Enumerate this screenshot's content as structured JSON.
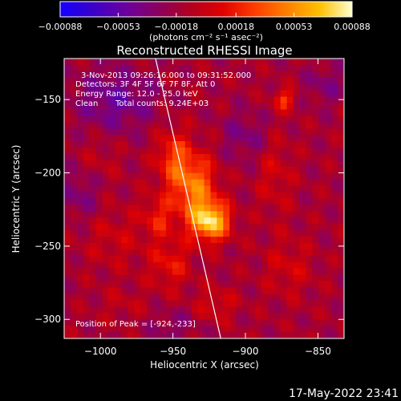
{
  "chart_data": {
    "type": "heatmap",
    "title": "Reconstructed RHESSI Image",
    "xlabel": "Heliocentric X (arcsec)",
    "ylabel": "Heliocentric Y (arcsec)",
    "xlim": [
      -1025,
      -832
    ],
    "ylim": [
      -313,
      -122
    ],
    "xticks": [
      -1000,
      -950,
      -900,
      -850
    ],
    "yticks": [
      -300,
      -250,
      -200,
      -150
    ],
    "xtick_labels": [
      "−1000",
      "−950",
      "−900",
      "−850"
    ],
    "ytick_labels": [
      "−300",
      "−250",
      "−200",
      "−150"
    ],
    "colorbar": {
      "min": -0.00088,
      "max": 0.00088,
      "ticks": [
        -0.00088,
        -0.00053,
        -0.00018,
        0.00018,
        0.00053,
        0.00088
      ],
      "tick_labels": [
        "−0.00088",
        "−0.00053",
        "−0.00018",
        "0.00018",
        "0.00053",
        "0.00088"
      ],
      "unit_label": "(photons cm⁻² s⁻¹ asec⁻²)",
      "colors": [
        "#1400ff",
        "#3a00c8",
        "#6a00a0",
        "#8a0060",
        "#b00020",
        "#e00000",
        "#ff3c00",
        "#ff8000",
        "#ffc000",
        "#ffffd0"
      ]
    },
    "sources": [
      {
        "x": -924,
        "y": -233,
        "value": 0.00088,
        "sx": 9,
        "sy": 9
      },
      {
        "x": -935,
        "y": -210,
        "value": 0.0006,
        "sx": 10,
        "sy": 16
      },
      {
        "x": -950,
        "y": -190,
        "value": 0.0004,
        "sx": 8,
        "sy": 14
      },
      {
        "x": -960,
        "y": -230,
        "value": 0.0003,
        "sx": 8,
        "sy": 10
      },
      {
        "x": -952,
        "y": -262,
        "value": 0.00028,
        "sx": 10,
        "sy": 12
      },
      {
        "x": -920,
        "y": -290,
        "value": 0.0002,
        "sx": 10,
        "sy": 8
      },
      {
        "x": -873,
        "y": -150,
        "value": 0.0004,
        "sx": 5,
        "sy": 5
      },
      {
        "x": -880,
        "y": -200,
        "value": 0.00018,
        "sx": 9,
        "sy": 20
      },
      {
        "x": -870,
        "y": -265,
        "value": 0.00018,
        "sx": 12,
        "sy": 14
      },
      {
        "x": -990,
        "y": -245,
        "value": 0.00015,
        "sx": 15,
        "sy": 15
      },
      {
        "x": -1000,
        "y": -190,
        "value": 0.0001,
        "sx": 10,
        "sy": 10
      },
      {
        "x": -985,
        "y": -290,
        "value": 0.0001,
        "sx": 12,
        "sy": 8
      },
      {
        "x": -900,
        "y": -175,
        "value": -0.0002,
        "sx": 12,
        "sy": 12
      },
      {
        "x": -990,
        "y": -150,
        "value": -0.0003,
        "sx": 20,
        "sy": 15
      },
      {
        "x": -1015,
        "y": -215,
        "value": -0.0002,
        "sx": 10,
        "sy": 12
      },
      {
        "x": -845,
        "y": -140,
        "value": -0.00018,
        "sx": 10,
        "sy": 10
      },
      {
        "x": -950,
        "y": -305,
        "value": -0.00015,
        "sx": 12,
        "sy": 8
      }
    ],
    "limb_line": [
      [
        -962,
        -122
      ],
      [
        -917,
        -313
      ]
    ],
    "annotations": {
      "time_range": "3-Nov-2013 09:26:16.000 to 09:31:52.000",
      "detectors": "Detectors: 3F 4F 5F 6F 7F 8F, Att 0",
      "energy_range": "Energy Range: 12.0 - 25.0 keV",
      "clean": "Clean",
      "total_counts": "Total counts: 9.24E+03",
      "peak_position": "Position of Peak = [-924,-233]"
    }
  },
  "footer_timestamp": "17-May-2022 23:41"
}
